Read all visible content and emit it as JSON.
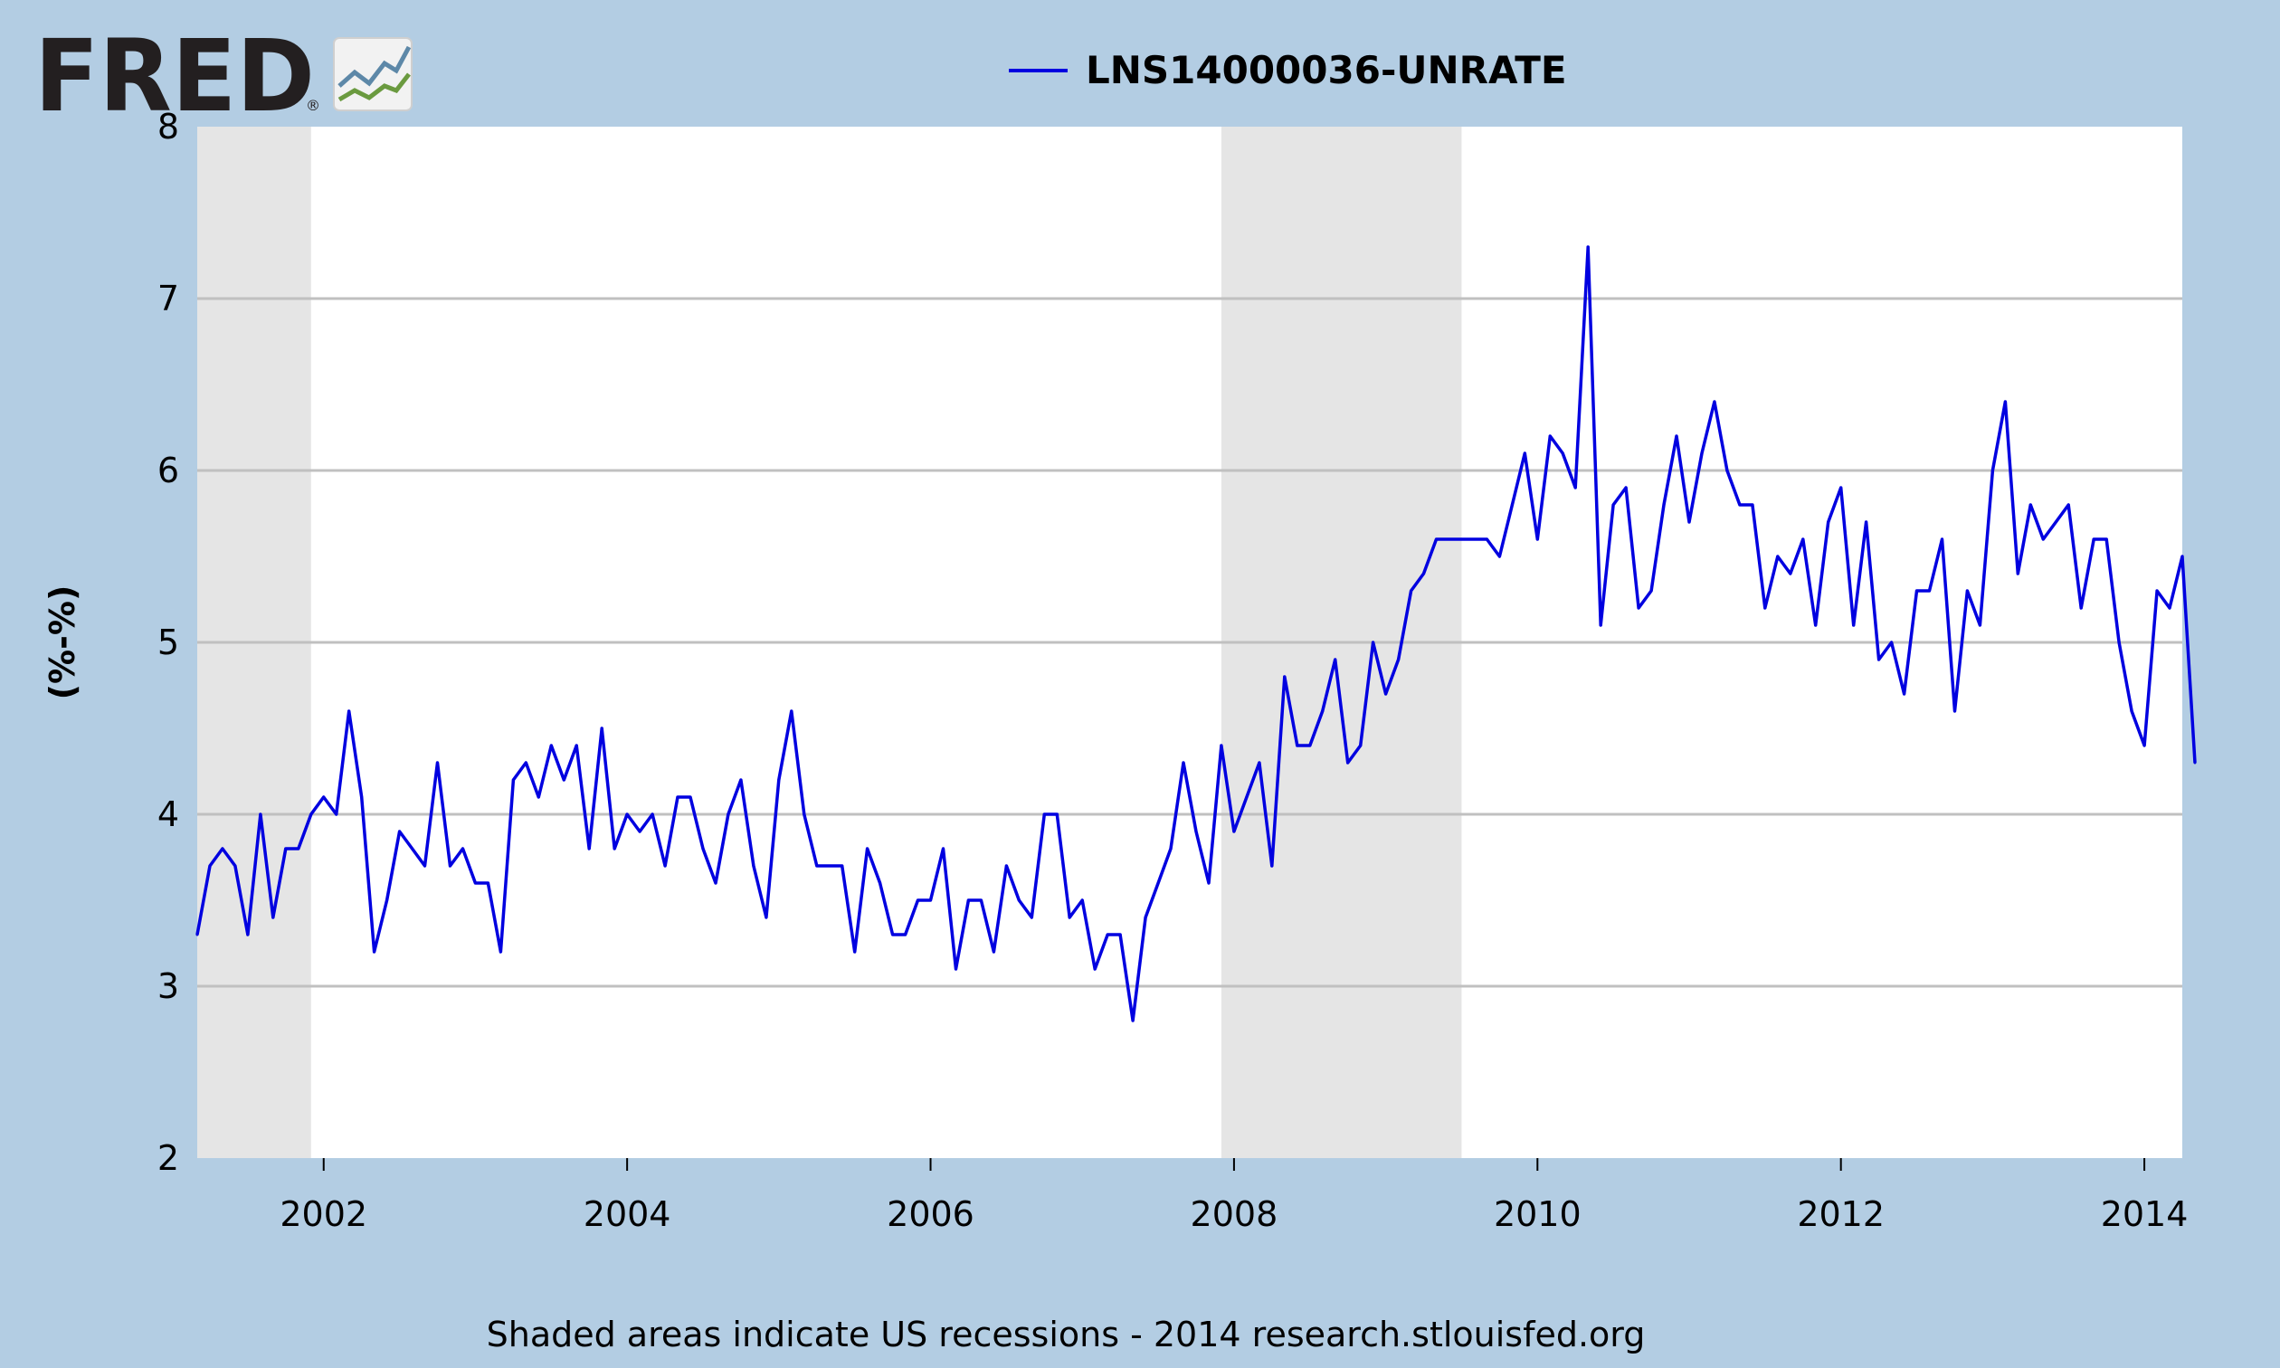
{
  "logo": {
    "text": "FRED",
    "registered": "®"
  },
  "footer": "Shaded areas indicate US recessions - 2014 research.stlouisfed.org",
  "colors": {
    "background": "#b3cde3",
    "plot_background": "#ffffff",
    "recession_shade": "#e5e5e5",
    "gridline": "#c0c0c0",
    "series": "#0000e0"
  },
  "chart_data": {
    "type": "line",
    "title": "",
    "xlabel": "",
    "ylabel": "(%-%)",
    "ylim": [
      2,
      8
    ],
    "yticks": [
      2,
      3,
      4,
      5,
      6,
      7,
      8
    ],
    "xlim": [
      "2001-03",
      "2014-04"
    ],
    "xticks": [
      {
        "date": "2002-01",
        "label": "2002"
      },
      {
        "date": "2004-01",
        "label": "2004"
      },
      {
        "date": "2006-01",
        "label": "2006"
      },
      {
        "date": "2008-01",
        "label": "2008"
      },
      {
        "date": "2010-01",
        "label": "2010"
      },
      {
        "date": "2012-01",
        "label": "2012"
      },
      {
        "date": "2014-01",
        "label": "2014"
      }
    ],
    "grid": "horizontal",
    "legend_position": "top",
    "recessions": [
      {
        "start": "2001-03",
        "end": "2001-11"
      },
      {
        "start": "2007-12",
        "end": "2009-06"
      }
    ],
    "series": [
      {
        "name": "LNS14000036-UNRATE",
        "color": "#0000e0",
        "start": "2001-03",
        "frequency": "monthly",
        "values": [
          3.3,
          3.7,
          3.8,
          3.7,
          3.3,
          4.0,
          3.4,
          3.8,
          3.8,
          4.0,
          4.1,
          4.0,
          4.6,
          4.1,
          3.2,
          3.5,
          3.9,
          3.8,
          3.7,
          4.3,
          3.7,
          3.8,
          3.6,
          3.6,
          3.2,
          4.2,
          4.3,
          4.1,
          4.4,
          4.2,
          4.4,
          3.8,
          4.5,
          3.8,
          4.0,
          3.9,
          4.0,
          3.7,
          4.1,
          4.1,
          3.8,
          3.6,
          4.0,
          4.2,
          3.7,
          3.4,
          4.2,
          4.6,
          4.0,
          3.7,
          3.7,
          3.7,
          3.2,
          3.8,
          3.6,
          3.3,
          3.3,
          3.5,
          3.5,
          3.8,
          3.1,
          3.5,
          3.5,
          3.2,
          3.7,
          3.5,
          3.4,
          4.0,
          4.0,
          3.4,
          3.5,
          3.1,
          3.3,
          3.3,
          2.8,
          3.4,
          3.6,
          3.8,
          4.3,
          3.9,
          3.6,
          4.4,
          3.9,
          4.1,
          4.3,
          3.7,
          4.8,
          4.4,
          4.4,
          4.6,
          4.9,
          4.3,
          4.4,
          5.0,
          4.7,
          4.9,
          5.3,
          5.4,
          5.6,
          5.6,
          5.6,
          5.6,
          5.6,
          5.5,
          5.8,
          6.1,
          5.6,
          6.2,
          6.1,
          5.9,
          7.3,
          5.1,
          5.8,
          5.9,
          5.2,
          5.3,
          5.8,
          6.2,
          5.7,
          6.1,
          6.4,
          6.0,
          5.8,
          5.8,
          5.2,
          5.5,
          5.4,
          5.6,
          5.1,
          5.7,
          5.9,
          5.1,
          5.7,
          4.9,
          5.0,
          4.7,
          5.3,
          5.3,
          5.6,
          4.6,
          5.3,
          5.1,
          6.0,
          6.4,
          5.4,
          5.8,
          5.6,
          5.7,
          5.8,
          5.2,
          5.6,
          5.6,
          5.0,
          4.6,
          4.4,
          5.3,
          5.2,
          5.5,
          4.3
        ]
      }
    ]
  }
}
